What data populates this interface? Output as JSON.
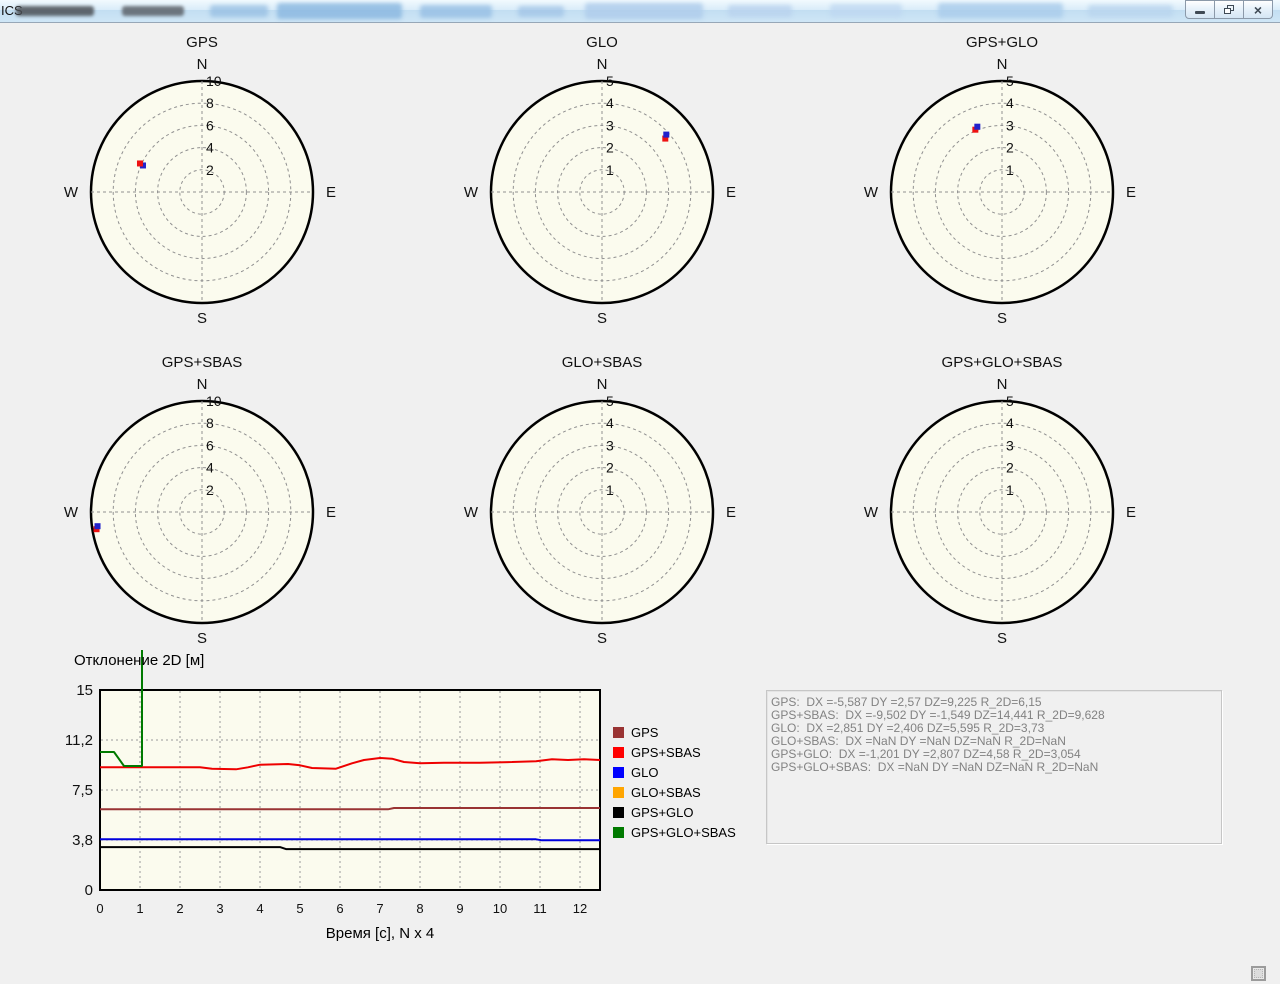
{
  "window": {
    "title_left": "ICS",
    "controls": [
      "minimize",
      "restore",
      "close"
    ]
  },
  "compass": {
    "n": "N",
    "s": "S",
    "w": "W",
    "e": "E"
  },
  "polar_plots": [
    {
      "title": "GPS",
      "scale_max": 10,
      "ring_labels": [
        "10",
        "8",
        "6",
        "4",
        "2"
      ],
      "marker": {
        "dx": -5.587,
        "dy": 2.57,
        "blue_offset": [
          3,
          2
        ],
        "blue_on_top": false
      }
    },
    {
      "title": "GLO",
      "scale_max": 5,
      "ring_labels": [
        "5",
        "4",
        "3",
        "2",
        "1"
      ],
      "marker": {
        "dx": 2.851,
        "dy": 2.406,
        "blue_offset": [
          1,
          -4
        ],
        "blue_on_top": true
      }
    },
    {
      "title": "GPS+GLO",
      "scale_max": 5,
      "ring_labels": [
        "5",
        "4",
        "3",
        "2",
        "1"
      ],
      "marker": {
        "dx": -1.201,
        "dy": 2.807,
        "blue_offset": [
          2,
          -3
        ],
        "blue_on_top": true
      }
    },
    {
      "title": "GPS+SBAS",
      "scale_max": 10,
      "ring_labels": [
        "10",
        "8",
        "6",
        "4",
        "2"
      ],
      "marker": {
        "dx": -9.502,
        "dy": -1.549,
        "blue_offset": [
          1,
          -3
        ],
        "blue_on_top": true
      }
    },
    {
      "title": "GLO+SBAS",
      "scale_max": 5,
      "ring_labels": [
        "5",
        "4",
        "3",
        "2",
        "1"
      ],
      "marker": null
    },
    {
      "title": "GPS+GLO+SBAS",
      "scale_max": 5,
      "ring_labels": [
        "5",
        "4",
        "3",
        "2",
        "1"
      ],
      "marker": null
    }
  ],
  "marker_colors": {
    "red": "#ee1111",
    "blue": "#2222cc"
  },
  "chart_data": {
    "type": "line",
    "title": "Отклонение 2D [м]",
    "xlabel": "Время [с], N x 4",
    "xlim": [
      0,
      12.5
    ],
    "ylim": [
      0,
      15
    ],
    "grid": true,
    "legend_position": "right",
    "x_ticks": [
      "0",
      "1",
      "2",
      "3",
      "4",
      "5",
      "6",
      "7",
      "8",
      "9",
      "10",
      "11",
      "12"
    ],
    "y_ticks": [
      {
        "value": 15,
        "label": "15"
      },
      {
        "value": 11.25,
        "label": "11,2"
      },
      {
        "value": 7.5,
        "label": "7,5"
      },
      {
        "value": 3.75,
        "label": "3,8"
      },
      {
        "value": 0,
        "label": "0"
      }
    ],
    "series": [
      {
        "name": "GPS",
        "color": "#993333",
        "points": [
          [
            0,
            6.05
          ],
          [
            7.2,
            6.05
          ],
          [
            7.35,
            6.15
          ],
          [
            12.5,
            6.15
          ]
        ]
      },
      {
        "name": "GPS+SBAS",
        "color": "#ee0000",
        "points": [
          [
            0,
            9.2
          ],
          [
            2.5,
            9.2
          ],
          [
            2.8,
            9.1
          ],
          [
            3.4,
            9.05
          ],
          [
            3.7,
            9.2
          ],
          [
            4.0,
            9.4
          ],
          [
            4.7,
            9.45
          ],
          [
            5.0,
            9.35
          ],
          [
            5.3,
            9.15
          ],
          [
            5.9,
            9.1
          ],
          [
            6.3,
            9.5
          ],
          [
            6.6,
            9.75
          ],
          [
            7.0,
            9.9
          ],
          [
            7.3,
            9.85
          ],
          [
            7.6,
            9.6
          ],
          [
            8.0,
            9.5
          ],
          [
            8.6,
            9.55
          ],
          [
            9.5,
            9.55
          ],
          [
            10.3,
            9.6
          ],
          [
            10.9,
            9.65
          ],
          [
            11.3,
            9.8
          ],
          [
            11.7,
            9.75
          ],
          [
            12.1,
            9.8
          ],
          [
            12.5,
            9.75
          ]
        ]
      },
      {
        "name": "GLO",
        "color": "#0000dd",
        "points": [
          [
            0,
            3.8
          ],
          [
            10.9,
            3.8
          ],
          [
            11.05,
            3.73
          ],
          [
            12.5,
            3.73
          ]
        ]
      },
      {
        "name": "GLO+SBAS",
        "color": "#ffa500",
        "points": []
      },
      {
        "name": "GPS+GLO",
        "color": "#000000",
        "points": [
          [
            0,
            3.22
          ],
          [
            4.5,
            3.22
          ],
          [
            4.65,
            3.07
          ],
          [
            12.5,
            3.07
          ]
        ]
      },
      {
        "name": "GPS+GLO+SBAS",
        "color": "#007a00",
        "points": [
          [
            0,
            10.35
          ],
          [
            0.35,
            10.35
          ],
          [
            0.6,
            9.3
          ],
          [
            1.05,
            9.3
          ],
          [
            1.05,
            18
          ]
        ]
      }
    ]
  },
  "legend": [
    {
      "label": "GPS",
      "color": "#993333"
    },
    {
      "label": "GPS+SBAS",
      "color": "#ff0000"
    },
    {
      "label": "GLO",
      "color": "#0000ff"
    },
    {
      "label": "GLO+SBAS",
      "color": "#ffa500"
    },
    {
      "label": "GPS+GLO",
      "color": "#000000"
    },
    {
      "label": "GPS+GLO+SBAS",
      "color": "#007a00"
    }
  ],
  "stats_box": {
    "lines": [
      "GPS:  DX =-5,587 DY =2,57 DZ=9,225 R_2D=6,15",
      "GPS+SBAS:  DX =-9,502 DY =-1,549 DZ=14,441 R_2D=9,628",
      "GLO:  DX =2,851 DY =2,406 DZ=5,595 R_2D=3,73",
      "GLO+SBAS:  DX =NaN DY =NaN DZ=NaN R_2D=NaN",
      "GPS+GLO:  DX =-1,201 DY =2,807 DZ=4,58 R_2D=3,054",
      "GPS+GLO+SBAS:  DX =NaN DY =NaN DZ=NaN R_2D=NaN"
    ]
  },
  "colors": {
    "page_bg": "#f0f0f0",
    "plot_bg": "#fbfbee",
    "grid": "#999999",
    "ring": "#909090"
  }
}
